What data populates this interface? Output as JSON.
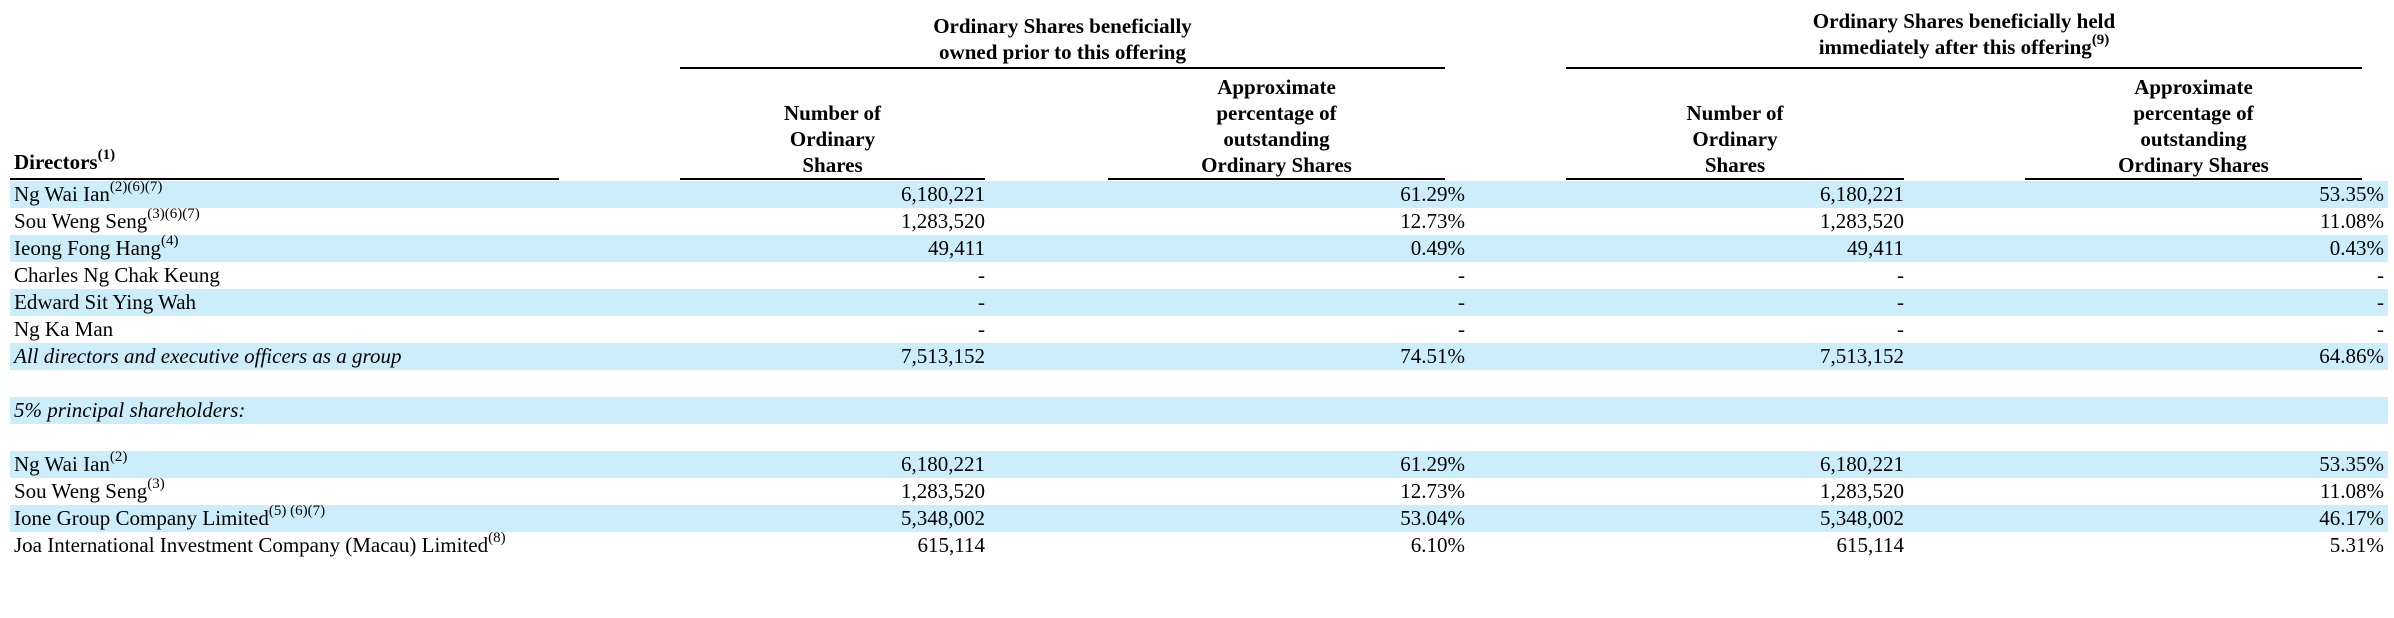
{
  "colors": {
    "band": "#cceefb",
    "text": "#000000",
    "rule": "#000000"
  },
  "header": {
    "group_prior": {
      "line1": "Ordinary Shares beneficially",
      "line2": "owned prior to this offering"
    },
    "group_after": {
      "line1": "Ordinary Shares beneficially held",
      "line2": "immediately after this offering",
      "sup": "(9)"
    },
    "col_num_prior": [
      "Number of",
      "Ordinary",
      "Shares"
    ],
    "col_pct_prior": [
      "Approximate",
      "percentage of",
      "outstanding",
      "Ordinary Shares"
    ],
    "col_num_after": [
      "Number of",
      "Ordinary",
      "Shares"
    ],
    "col_pct_after": [
      "Approximate",
      "percentage of",
      "outstanding",
      "Ordinary Shares"
    ],
    "directors_label": "Directors",
    "directors_sup": "(1)"
  },
  "rows": [
    {
      "name": "Ng Wai Ian",
      "sup": "(2)(6)(7)",
      "num_prior": "6,180,221",
      "pct_prior": "61.29%",
      "num_after": "6,180,221",
      "pct_after": "53.35%"
    },
    {
      "name": "Sou Weng Seng",
      "sup": "(3)(6)(7)",
      "num_prior": "1,283,520",
      "pct_prior": "12.73%",
      "num_after": "1,283,520",
      "pct_after": "11.08%"
    },
    {
      "name": "Ieong Fong Hang",
      "sup": "(4)",
      "num_prior": "49,411",
      "pct_prior": "0.49%",
      "num_after": "49,411",
      "pct_after": "0.43%"
    },
    {
      "name": "Charles Ng Chak Keung",
      "sup": "",
      "num_prior": "-",
      "pct_prior": "-",
      "num_after": "-",
      "pct_after": "-"
    },
    {
      "name": "Edward Sit Ying Wah",
      "sup": "",
      "num_prior": "-",
      "pct_prior": "-",
      "num_after": "-",
      "pct_after": "-"
    },
    {
      "name": "Ng Ka Man",
      "sup": "",
      "num_prior": "-",
      "pct_prior": "-",
      "num_after": "-",
      "pct_after": "-"
    },
    {
      "name": "All directors and executive officers as a group",
      "sup": "",
      "num_prior": "7,513,152",
      "pct_prior": "74.51%",
      "num_after": "7,513,152",
      "pct_after": "64.86%"
    },
    {
      "name": "",
      "sup": "",
      "num_prior": "",
      "pct_prior": "",
      "num_after": "",
      "pct_after": ""
    },
    {
      "name": "5% principal shareholders:",
      "sup": "",
      "num_prior": "",
      "pct_prior": "",
      "num_after": "",
      "pct_after": ""
    },
    {
      "name": "",
      "sup": "",
      "num_prior": "",
      "pct_prior": "",
      "num_after": "",
      "pct_after": ""
    },
    {
      "name": "Ng Wai Ian",
      "sup": "(2)",
      "num_prior": "6,180,221",
      "pct_prior": "61.29%",
      "num_after": "6,180,221",
      "pct_after": "53.35%"
    },
    {
      "name": "Sou Weng Seng",
      "sup": "(3)",
      "num_prior": "1,283,520",
      "pct_prior": "12.73%",
      "num_after": "1,283,520",
      "pct_after": "11.08%"
    },
    {
      "name": "Ione Group Company Limited",
      "sup": "(5) (6)(7)",
      "num_prior": "5,348,002",
      "pct_prior": "53.04%",
      "num_after": "5,348,002",
      "pct_after": "46.17%"
    },
    {
      "name": "Joa International Investment Company (Macau) Limited",
      "sup": "(8)",
      "num_prior": "615,114",
      "pct_prior": "6.10%",
      "num_after": "615,114",
      "pct_after": "5.31%"
    }
  ]
}
